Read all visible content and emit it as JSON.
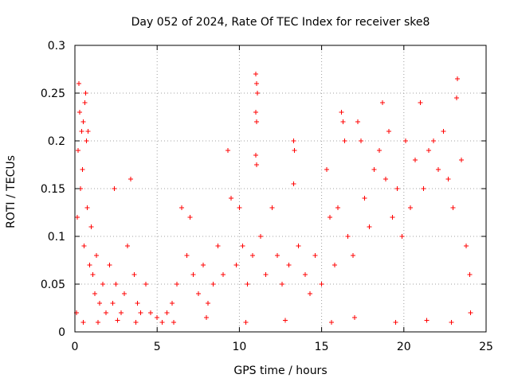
{
  "chart_data": {
    "type": "scatter",
    "title": "Day 052 of 2024, Rate Of TEC Index for receiver ske8",
    "xlabel": "GPS time / hours",
    "ylabel": "ROTI / TECUs",
    "xlim": [
      0,
      25
    ],
    "ylim": [
      0,
      0.3
    ],
    "x_ticks": [
      0,
      5,
      10,
      15,
      20,
      25
    ],
    "y_ticks": [
      0,
      0.05,
      0.1,
      0.15,
      0.2,
      0.25,
      0.3
    ],
    "x_tick_labels": [
      "0",
      "5",
      "10",
      "15",
      "20",
      "25"
    ],
    "y_tick_labels": [
      "0",
      "0.05",
      "0.1",
      "0.15",
      "0.2",
      "0.25",
      "0.3"
    ],
    "grid": true,
    "marker": "plus",
    "marker_color": "#ff0000",
    "series": [
      {
        "name": "ROTI",
        "points": [
          [
            0.1,
            0.02
          ],
          [
            0.15,
            0.12
          ],
          [
            0.2,
            0.19
          ],
          [
            0.25,
            0.26
          ],
          [
            0.3,
            0.23
          ],
          [
            0.35,
            0.15
          ],
          [
            0.4,
            0.21
          ],
          [
            0.45,
            0.17
          ],
          [
            0.5,
            0.22
          ],
          [
            0.55,
            0.09
          ],
          [
            0.6,
            0.24
          ],
          [
            0.65,
            0.25
          ],
          [
            0.7,
            0.2
          ],
          [
            0.75,
            0.13
          ],
          [
            0.8,
            0.21
          ],
          [
            0.9,
            0.07
          ],
          [
            1.0,
            0.11
          ],
          [
            1.1,
            0.06
          ],
          [
            1.2,
            0.04
          ],
          [
            1.3,
            0.08
          ],
          [
            1.5,
            0.03
          ],
          [
            1.7,
            0.05
          ],
          [
            1.9,
            0.02
          ],
          [
            2.1,
            0.07
          ],
          [
            2.3,
            0.03
          ],
          [
            2.4,
            0.15
          ],
          [
            2.5,
            0.05
          ],
          [
            2.8,
            0.02
          ],
          [
            3.0,
            0.04
          ],
          [
            3.2,
            0.09
          ],
          [
            3.4,
            0.16
          ],
          [
            3.6,
            0.06
          ],
          [
            3.8,
            0.03
          ],
          [
            4.0,
            0.02
          ],
          [
            4.3,
            0.05
          ],
          [
            4.6,
            0.02
          ],
          [
            5.0,
            0.015
          ],
          [
            5.3,
            0.01
          ],
          [
            5.6,
            0.02
          ],
          [
            5.9,
            0.03
          ],
          [
            6.2,
            0.05
          ],
          [
            6.5,
            0.13
          ],
          [
            6.8,
            0.08
          ],
          [
            7.0,
            0.12
          ],
          [
            7.2,
            0.06
          ],
          [
            7.5,
            0.04
          ],
          [
            7.8,
            0.07
          ],
          [
            8.1,
            0.03
          ],
          [
            8.4,
            0.05
          ],
          [
            8.7,
            0.09
          ],
          [
            9.0,
            0.06
          ],
          [
            9.3,
            0.19
          ],
          [
            9.5,
            0.14
          ],
          [
            9.8,
            0.07
          ],
          [
            10.0,
            0.13
          ],
          [
            10.2,
            0.09
          ],
          [
            10.5,
            0.05
          ],
          [
            10.8,
            0.08
          ],
          [
            11.0,
            0.27
          ],
          [
            11.05,
            0.26
          ],
          [
            11.1,
            0.25
          ],
          [
            11.0,
            0.23
          ],
          [
            11.05,
            0.22
          ],
          [
            11.0,
            0.185
          ],
          [
            11.05,
            0.175
          ],
          [
            11.3,
            0.1
          ],
          [
            11.6,
            0.06
          ],
          [
            12.0,
            0.13
          ],
          [
            12.3,
            0.08
          ],
          [
            12.6,
            0.05
          ],
          [
            13.0,
            0.07
          ],
          [
            13.3,
            0.2
          ],
          [
            13.35,
            0.19
          ],
          [
            13.3,
            0.155
          ],
          [
            13.6,
            0.09
          ],
          [
            14.0,
            0.06
          ],
          [
            14.3,
            0.04
          ],
          [
            14.6,
            0.08
          ],
          [
            15.0,
            0.05
          ],
          [
            15.3,
            0.17
          ],
          [
            15.5,
            0.12
          ],
          [
            15.8,
            0.07
          ],
          [
            16.0,
            0.13
          ],
          [
            16.2,
            0.23
          ],
          [
            16.3,
            0.22
          ],
          [
            16.4,
            0.2
          ],
          [
            16.6,
            0.1
          ],
          [
            16.9,
            0.08
          ],
          [
            17.2,
            0.22
          ],
          [
            17.4,
            0.2
          ],
          [
            17.6,
            0.14
          ],
          [
            17.9,
            0.11
          ],
          [
            18.2,
            0.17
          ],
          [
            18.5,
            0.19
          ],
          [
            18.7,
            0.24
          ],
          [
            18.9,
            0.16
          ],
          [
            19.1,
            0.21
          ],
          [
            19.3,
            0.12
          ],
          [
            19.6,
            0.15
          ],
          [
            19.9,
            0.1
          ],
          [
            20.1,
            0.2
          ],
          [
            20.4,
            0.13
          ],
          [
            20.7,
            0.18
          ],
          [
            21.0,
            0.24
          ],
          [
            21.2,
            0.15
          ],
          [
            21.5,
            0.19
          ],
          [
            21.8,
            0.2
          ],
          [
            22.1,
            0.17
          ],
          [
            22.4,
            0.21
          ],
          [
            22.7,
            0.16
          ],
          [
            23.0,
            0.13
          ],
          [
            23.2,
            0.245
          ],
          [
            23.25,
            0.265
          ],
          [
            23.5,
            0.18
          ],
          [
            23.8,
            0.09
          ],
          [
            24.0,
            0.06
          ],
          [
            24.05,
            0.02
          ],
          [
            1.4,
            0.01
          ],
          [
            3.7,
            0.01
          ],
          [
            6.0,
            0.01
          ],
          [
            8.0,
            0.015
          ],
          [
            10.4,
            0.01
          ],
          [
            12.8,
            0.012
          ],
          [
            15.6,
            0.01
          ],
          [
            17.0,
            0.015
          ],
          [
            19.5,
            0.01
          ],
          [
            21.4,
            0.012
          ],
          [
            22.9,
            0.01
          ],
          [
            0.5,
            0.01
          ],
          [
            2.6,
            0.012
          ]
        ]
      }
    ]
  }
}
